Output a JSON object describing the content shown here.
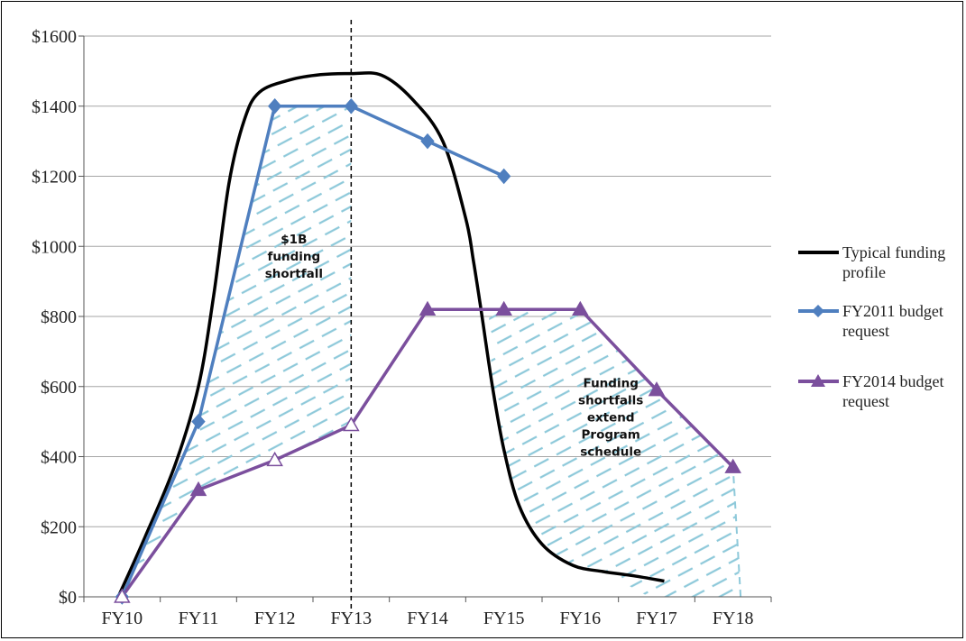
{
  "chart_data": {
    "type": "line",
    "categories": [
      "FY10",
      "FY11",
      "FY12",
      "FY13",
      "FY14",
      "FY15",
      "FY16",
      "FY17",
      "FY18"
    ],
    "y_ticks": [
      "$0",
      "$200",
      "$400",
      "$600",
      "$800",
      "$1000",
      "$1200",
      "$1400",
      "$1600"
    ],
    "ylim": [
      0,
      1600
    ],
    "grid": "horizontal",
    "legend_position": "right",
    "series": [
      {
        "name": "Typical funding profile",
        "color": "#000000",
        "marker": "none",
        "points": [
          [
            -0.05,
            0
          ],
          [
            0.3,
            170
          ],
          [
            0.7,
            380
          ],
          [
            1.0,
            600
          ],
          [
            1.2,
            860
          ],
          [
            1.4,
            1180
          ],
          [
            1.6,
            1360
          ],
          [
            1.8,
            1440
          ],
          [
            2.2,
            1475
          ],
          [
            2.6,
            1490
          ],
          [
            3.0,
            1493
          ],
          [
            3.4,
            1488
          ],
          [
            3.8,
            1420
          ],
          [
            4.2,
            1300
          ],
          [
            4.5,
            1080
          ],
          [
            4.6,
            960
          ],
          [
            4.7,
            820
          ],
          [
            4.85,
            600
          ],
          [
            5.0,
            420
          ],
          [
            5.2,
            260
          ],
          [
            5.5,
            150
          ],
          [
            5.9,
            90
          ],
          [
            6.3,
            72
          ],
          [
            6.7,
            60
          ],
          [
            7.1,
            45
          ]
        ]
      },
      {
        "name": "FY2011 budget request",
        "color": "#4F7FBF",
        "marker": "diamond",
        "points": [
          [
            0,
            0
          ],
          [
            1,
            500
          ],
          [
            2,
            1400
          ],
          [
            3,
            1400
          ],
          [
            4,
            1300
          ],
          [
            5,
            1200
          ]
        ]
      },
      {
        "name": "FY2014 budget request",
        "color": "#7B4F9D",
        "marker": "triangle",
        "points": [
          [
            0,
            0
          ],
          [
            1,
            305
          ],
          [
            2,
            390
          ],
          [
            3,
            490
          ],
          [
            4,
            820
          ],
          [
            5,
            820
          ],
          [
            6,
            820
          ],
          [
            7,
            590
          ],
          [
            8,
            370
          ]
        ],
        "hollow_points": [
          0,
          2,
          3
        ]
      }
    ],
    "legend": [
      {
        "lines": [
          "Typical funding",
          "profile"
        ]
      },
      {
        "lines": [
          "FY2011 budget",
          "request"
        ]
      },
      {
        "lines": [
          "FY2014 budget",
          "request"
        ]
      }
    ],
    "annotations": [
      {
        "lines": [
          "$1B",
          "funding",
          "shortfall"
        ],
        "at": [
          2.25,
          960
        ]
      },
      {
        "lines": [
          "Funding",
          "shortfalls",
          "extend",
          "Program",
          "schedule"
        ],
        "at": [
          6.4,
          500
        ]
      }
    ],
    "shaded_regions": [
      {
        "name": "FY2011 shortfall",
        "color": "#8EC9DA",
        "polygon": [
          [
            0,
            0
          ],
          [
            1,
            500
          ],
          [
            2,
            1400
          ],
          [
            3,
            1400
          ],
          [
            3,
            490
          ],
          [
            2,
            390
          ],
          [
            1,
            305
          ]
        ]
      },
      {
        "name": "FY2014 shortfall",
        "color": "#8EC9DA",
        "polygon": [
          [
            4.8,
            820
          ],
          [
            6,
            820
          ],
          [
            7,
            590
          ],
          [
            8,
            370
          ],
          [
            8.1,
            0
          ],
          [
            6.9,
            0
          ],
          [
            6.3,
            72
          ],
          [
            5.9,
            90
          ],
          [
            5.5,
            150
          ],
          [
            5.2,
            260
          ],
          [
            5.0,
            420
          ],
          [
            4.85,
            600
          ]
        ]
      }
    ],
    "reference_line": {
      "x": 3,
      "style": "dashed",
      "color": "#000000"
    }
  }
}
